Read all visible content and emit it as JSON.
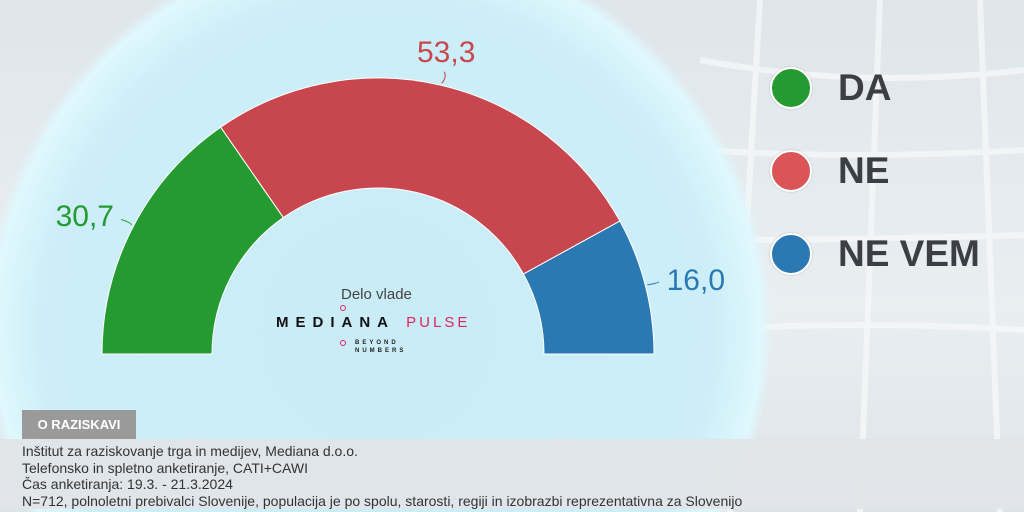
{
  "chart_data": {
    "type": "pie",
    "variant": "half-donut",
    "title": "Delo vlade",
    "categories": [
      "DA",
      "NE",
      "NE VEM"
    ],
    "values": [
      30.7,
      53.3,
      16.0
    ],
    "data_labels": [
      "30,7",
      "53,3",
      "16,0"
    ],
    "colors": [
      "#259a30",
      "#c8474e",
      "#2a79b3"
    ],
    "legend_colors": [
      "#259a30",
      "#db5558",
      "#2a79b3"
    ],
    "legend_placement": "right"
  },
  "logo": {
    "brand": "MEDIANA",
    "product": "PULSE",
    "tagline1": "BEYOND",
    "tagline2": "NUMBERS"
  },
  "about": {
    "tab_label": "O RAZISKAVI",
    "lines": [
      "Inštitut za raziskovanje trga in medijev, Mediana d.o.o.",
      "Telefonsko in spletno anketiranje, CATI+CAWI",
      "Čas anketiranja: 19.3. - 21.3.2024",
      "N=712, polnoletni prebivalci Slovenije, populacija je po spolu, starosti, regiji in izobrazbi reprezentativna za Slovenijo"
    ]
  }
}
